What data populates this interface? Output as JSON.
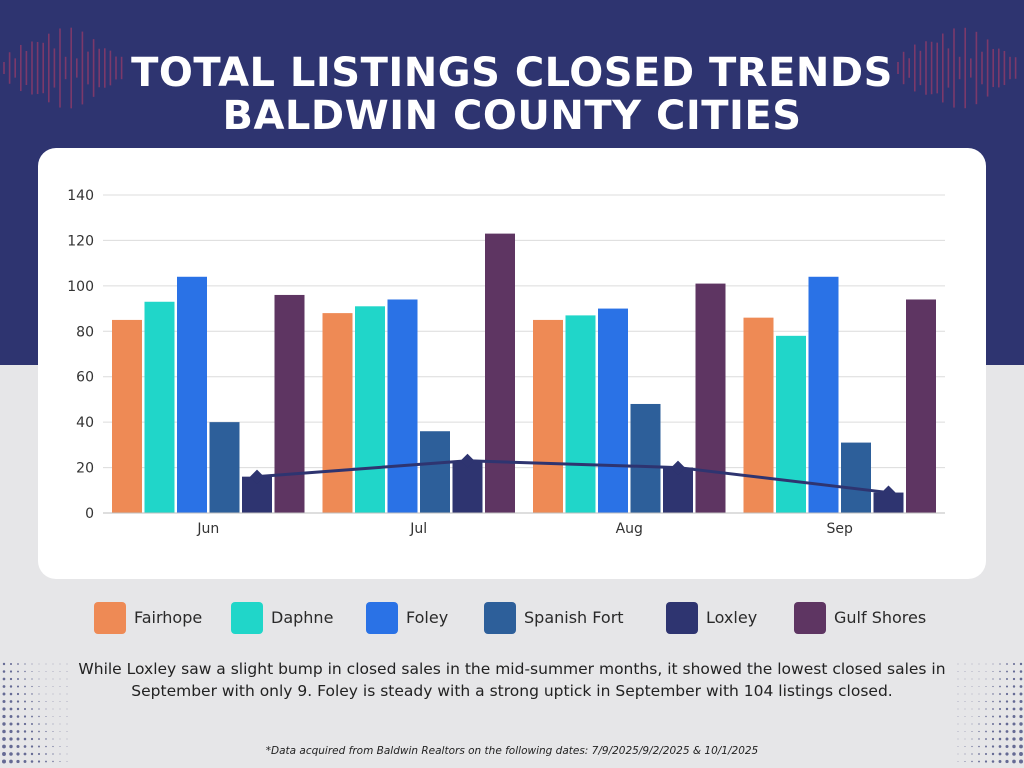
{
  "title": {
    "line1": "TOTAL LISTINGS CLOSED TRENDS",
    "line2": "BALDWIN COUNTY CITIES"
  },
  "colors": {
    "band": "#2e3470",
    "background": "#e6e6e8",
    "wave": "#8a3a6a",
    "dots": "#2e3470"
  },
  "legend": [
    {
      "label": "Fairhope",
      "color": "#ee8a55"
    },
    {
      "label": "Daphne",
      "color": "#20d6c9"
    },
    {
      "label": "Foley",
      "color": "#2a72e6"
    },
    {
      "label": "Spanish Fort",
      "color": "#2d5f9a"
    },
    {
      "label": "Loxley",
      "color": "#2e3470"
    },
    {
      "label": "Gulf Shores",
      "color": "#5e3562"
    }
  ],
  "note": "While Loxley saw a slight bump in closed sales in the mid-summer months, it showed the lowest closed sales in September with only 9. Foley is steady with a strong uptick in September with 104 listings closed.",
  "footnote": "*Data acquired from Baldwin Realtors on the following dates: 7/9/2025/9/2/2025 & 10/1/2025",
  "chart_data": {
    "type": "bar",
    "categories": [
      "Jun",
      "Jul",
      "Aug",
      "Sep"
    ],
    "ylim": [
      0,
      140
    ],
    "yticks": [
      0,
      20,
      40,
      60,
      80,
      100,
      120,
      140
    ],
    "grid": true,
    "legend_position": "bottom",
    "series": [
      {
        "name": "Fairhope",
        "values": [
          85,
          88,
          85,
          86
        ],
        "color": "#ee8a55"
      },
      {
        "name": "Daphne",
        "values": [
          93,
          91,
          87,
          78
        ],
        "color": "#20d6c9"
      },
      {
        "name": "Foley",
        "values": [
          104,
          94,
          90,
          104
        ],
        "color": "#2a72e6"
      },
      {
        "name": "Spanish Fort",
        "values": [
          40,
          36,
          48,
          31
        ],
        "color": "#2d5f9a"
      },
      {
        "name": "Loxley",
        "values": [
          16,
          23,
          20,
          9
        ],
        "color": "#2e3470"
      },
      {
        "name": "Gulf Shores",
        "values": [
          96,
          123,
          101,
          94
        ],
        "color": "#5e3562"
      }
    ],
    "trendline": {
      "series": "Loxley",
      "values": [
        16,
        23,
        20,
        9
      ],
      "color": "#2e3470"
    }
  }
}
